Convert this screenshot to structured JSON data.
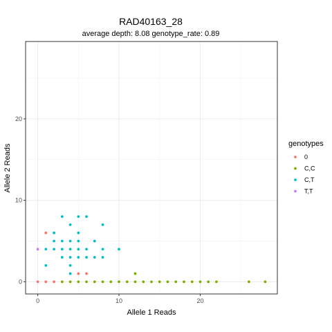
{
  "chart_data": {
    "type": "scatter",
    "title": "RAD40163_28",
    "subtitle": "average depth:  8.08  genotype_rate:  0.89",
    "xlabel": "Allele 1 Reads",
    "ylabel": "Allele 2 Reads",
    "xlim": [
      -1.5,
      29.5
    ],
    "ylim": [
      -1.5,
      29.5
    ],
    "x_ticks": [
      0,
      10,
      20
    ],
    "y_ticks": [
      0,
      10,
      20
    ],
    "grid": true,
    "legend_position": "right",
    "legend_title": "genotypes",
    "series": [
      {
        "name": "0",
        "color": "#F8766D",
        "points": [
          [
            0,
            0
          ],
          [
            1,
            0
          ],
          [
            2,
            0
          ],
          [
            1,
            6
          ],
          [
            5,
            1
          ],
          [
            6,
            1
          ]
        ]
      },
      {
        "name": "C,C",
        "color": "#7CAE00",
        "points": [
          [
            3,
            0
          ],
          [
            4,
            0
          ],
          [
            5,
            0
          ],
          [
            6,
            0
          ],
          [
            7,
            0
          ],
          [
            8,
            0
          ],
          [
            9,
            0
          ],
          [
            10,
            0
          ],
          [
            11,
            0
          ],
          [
            12,
            0
          ],
          [
            13,
            0
          ],
          [
            14,
            0
          ],
          [
            15,
            0
          ],
          [
            16,
            0
          ],
          [
            17,
            0
          ],
          [
            18,
            0
          ],
          [
            19,
            0
          ],
          [
            20,
            0
          ],
          [
            21,
            0
          ],
          [
            22,
            0
          ],
          [
            26,
            0
          ],
          [
            28,
            0
          ],
          [
            12,
            1
          ]
        ]
      },
      {
        "name": "C,T",
        "color": "#00BFC4",
        "points": [
          [
            1,
            2
          ],
          [
            1,
            4
          ],
          [
            2,
            4
          ],
          [
            2,
            5
          ],
          [
            2,
            6
          ],
          [
            3,
            3
          ],
          [
            3,
            4
          ],
          [
            3,
            5
          ],
          [
            3,
            8
          ],
          [
            4,
            1
          ],
          [
            4,
            2
          ],
          [
            4,
            3
          ],
          [
            4,
            4
          ],
          [
            4,
            5
          ],
          [
            4,
            7
          ],
          [
            5,
            3
          ],
          [
            5,
            4
          ],
          [
            5,
            5
          ],
          [
            5,
            6
          ],
          [
            5,
            8
          ],
          [
            6,
            3
          ],
          [
            6,
            4
          ],
          [
            6,
            8
          ],
          [
            7,
            3
          ],
          [
            7,
            5
          ],
          [
            8,
            3
          ],
          [
            8,
            4
          ],
          [
            8,
            7
          ],
          [
            10,
            4
          ]
        ]
      },
      {
        "name": "T,T",
        "color": "#C77CFF",
        "points": [
          [
            0,
            4
          ]
        ]
      }
    ]
  }
}
